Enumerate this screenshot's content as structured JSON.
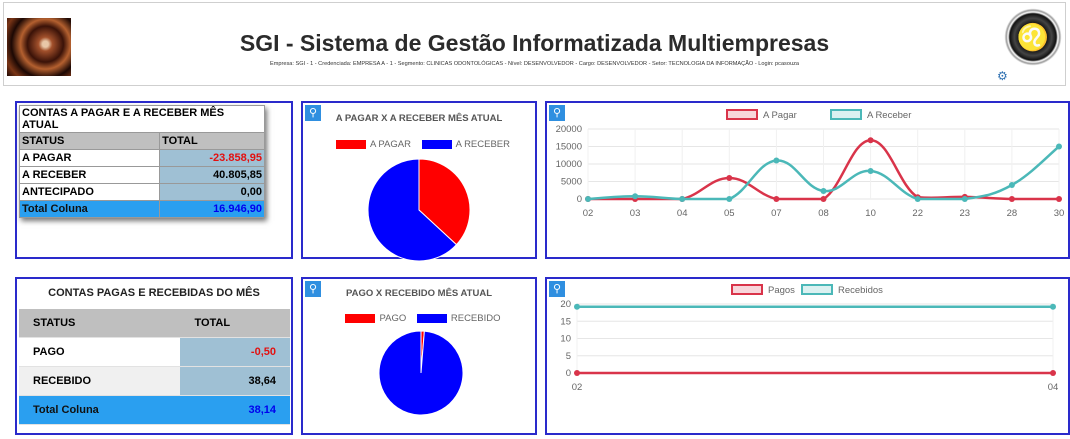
{
  "header": {
    "title": "SGI - Sistema de Gestão Informatizada Multiempresas",
    "subtitle": "Empresa: SGI - 1 - Credenciada: EMPRESA A - 1 - Segmento: CLINICAS ODONTOLÓGICAS - Nível: DESENVOLVEDOR - Cargo: DESENVOLVEDOR - Setor: TECNOLOGIA DA INFORMAÇÃO - Login: pcasouza"
  },
  "contas_mes": {
    "title": "CONTAS A PAGAR E A RECEBER MÊS ATUAL",
    "col_status": "STATUS",
    "col_total": "TOTAL",
    "rows": [
      {
        "status": "A PAGAR",
        "total": "-23.858,95"
      },
      {
        "status": "A RECEBER",
        "total": "40.805,85"
      },
      {
        "status": "ANTECIPADO",
        "total": "0,00"
      }
    ],
    "total_label": "Total Coluna",
    "total_value": "16.946,90"
  },
  "contas_pagas": {
    "title": "CONTAS PAGAS E RECEBIDAS DO MÊS",
    "col_status": "STATUS",
    "col_total": "TOTAL",
    "rows": [
      {
        "status": "PAGO",
        "total": "-0,50"
      },
      {
        "status": "RECEBIDO",
        "total": "38,64"
      }
    ],
    "total_label": "Total Coluna",
    "total_value": "38,14"
  },
  "chart_data": [
    {
      "type": "pie",
      "title": "A PAGAR X A RECEBER MÊS ATUAL",
      "labels": [
        "A PAGAR",
        "A RECEBER"
      ],
      "values": [
        23858.95,
        40805.85
      ],
      "colors": [
        "#ff0000",
        "#0000ff"
      ]
    },
    {
      "type": "line",
      "categories": [
        "02",
        "03",
        "04",
        "05",
        "07",
        "08",
        "10",
        "22",
        "23",
        "28",
        "30"
      ],
      "ylim": [
        0,
        20000
      ],
      "yticks": [
        0,
        5000,
        10000,
        15000,
        20000
      ],
      "grid": true,
      "legend": "top-center",
      "series": [
        {
          "name": "A Pagar",
          "color": "#d9344a",
          "values": [
            0,
            0,
            0,
            6000,
            0,
            0,
            16800,
            500,
            600,
            0,
            0
          ]
        },
        {
          "name": "A Receber",
          "color": "#4bb8b8",
          "values": [
            0,
            800,
            0,
            0,
            11000,
            2300,
            8000,
            0,
            0,
            4000,
            15000
          ]
        }
      ]
    },
    {
      "type": "pie",
      "title": "PAGO X RECEBIDO MÊS ATUAL",
      "labels": [
        "PAGO",
        "RECEBIDO"
      ],
      "values": [
        0.5,
        38.64
      ],
      "colors": [
        "#ff0000",
        "#0000ff"
      ]
    },
    {
      "type": "line",
      "categories": [
        "02",
        "04"
      ],
      "ylim": [
        0,
        20
      ],
      "yticks": [
        0,
        5,
        10,
        15,
        20
      ],
      "grid": true,
      "legend": "top-center",
      "series": [
        {
          "name": "Pagos",
          "color": "#d9344a",
          "values": [
            0,
            0
          ]
        },
        {
          "name": "Recebidos",
          "color": "#4bb8b8",
          "values": [
            19.2,
            19.2
          ]
        }
      ]
    }
  ]
}
